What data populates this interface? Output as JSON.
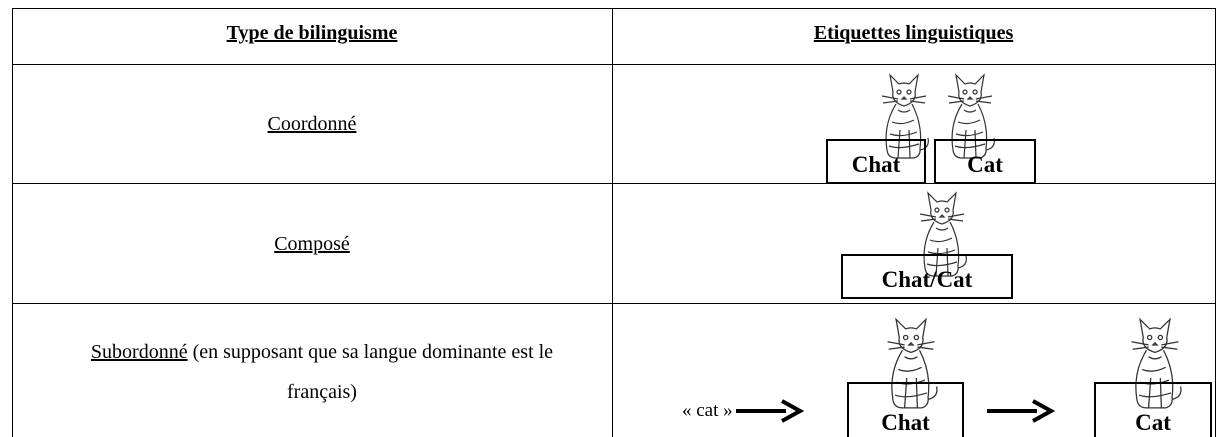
{
  "header": {
    "col1": "Type de bilinguisme",
    "col2": "Etiquettes linguistiques"
  },
  "rows": [
    {
      "type": "Coordonné",
      "labels": [
        "Chat",
        "Cat"
      ]
    },
    {
      "type": "Composé",
      "labels": [
        "Chat/Cat"
      ]
    },
    {
      "type": "Subordonné",
      "note": " (en supposant que sa langue dominante est le français)",
      "input": "« cat »",
      "labels": [
        "Chat",
        "Cat"
      ]
    }
  ]
}
